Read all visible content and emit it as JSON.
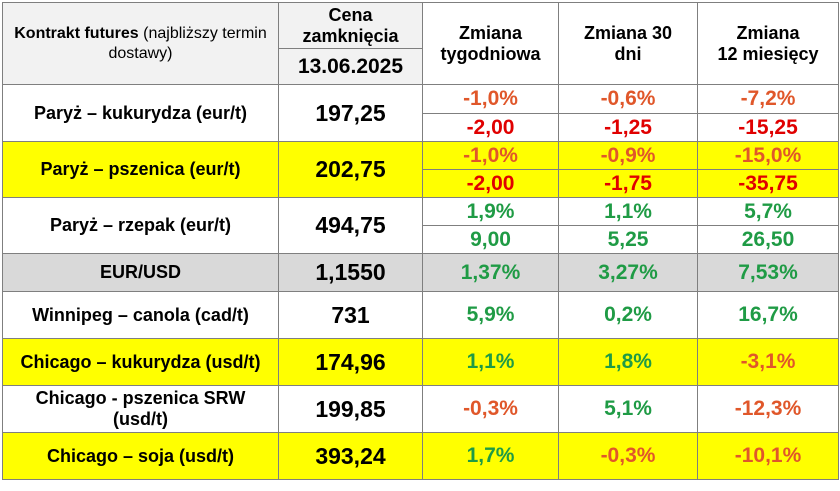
{
  "header": {
    "contract_bold": "Kontrakt futures",
    "contract_light": " (najbliższy termin dostawy)",
    "close_line1": "Cena",
    "close_line2": "zamknięcia",
    "date": "13.06.2025",
    "weekly_line1": "Zmiana",
    "weekly_line2": "tygodniowa",
    "d30_line1": "Zmiana 30",
    "d30_line2": "dni",
    "m12_line1": "Zmiana",
    "m12_line2": "12 miesięcy"
  },
  "colors": {
    "yellow_row": "#ffff00",
    "gray_row": "#d9d9d9",
    "negative_pct": "#e0572a",
    "negative_abs": "#e00000",
    "positive": "#1f9b45"
  },
  "rows": [
    {
      "name": "Paryż – kukurydza  (eur/t)",
      "price": "197,25",
      "weekly_pct": "-1,0%",
      "d30_pct": "-0,6%",
      "m12_pct": "-7,2%",
      "weekly_abs": "-2,00",
      "d30_abs": "-1,25",
      "m12_abs": "-15,25"
    },
    {
      "name": "Paryż – pszenica (eur/t)",
      "price": "202,75",
      "weekly_pct": "-1,0%",
      "d30_pct": "-0,9%",
      "m12_pct": "-15,0%",
      "weekly_abs": "-2,00",
      "d30_abs": "-1,75",
      "m12_abs": "-35,75"
    },
    {
      "name": "Paryż – rzepak (eur/t)",
      "price": "494,75",
      "weekly_pct": "1,9%",
      "d30_pct": "1,1%",
      "m12_pct": "5,7%",
      "weekly_abs": "9,00",
      "d30_abs": "5,25",
      "m12_abs": "26,50"
    },
    {
      "name": "EUR/USD",
      "price": "1,1550",
      "weekly_pct": "1,37%",
      "d30_pct": "3,27%",
      "m12_pct": "7,53%"
    },
    {
      "name": "Winnipeg – canola (cad/t)",
      "price": "731",
      "weekly_pct": "5,9%",
      "d30_pct": "0,2%",
      "m12_pct": "16,7%"
    },
    {
      "name": "Chicago – kukurydza (usd/t)",
      "price": "174,96",
      "weekly_pct": "1,1%",
      "d30_pct": "1,8%",
      "m12_pct": "-3,1%"
    },
    {
      "name": "Chicago - pszenica SRW (usd/t)",
      "price": "199,85",
      "weekly_pct": "-0,3%",
      "d30_pct": "5,1%",
      "m12_pct": "-12,3%"
    },
    {
      "name": "Chicago – soja (usd/t)",
      "price": "393,24",
      "weekly_pct": "1,7%",
      "d30_pct": "-0,3%",
      "m12_pct": "-10,1%"
    }
  ]
}
